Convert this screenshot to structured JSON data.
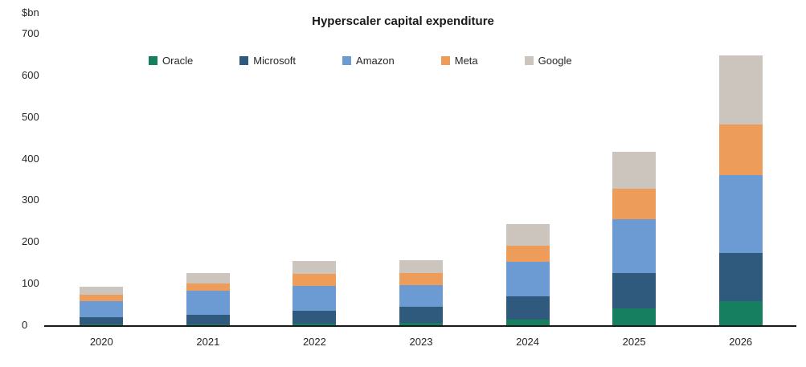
{
  "chart_data": {
    "type": "bar",
    "stacked": true,
    "title": "Hyperscaler capital expenditure",
    "ylabel": "$bn",
    "ylim": [
      0,
      700
    ],
    "yticks": [
      0,
      100,
      200,
      300,
      400,
      500,
      600,
      700
    ],
    "grid": false,
    "legend_position": "top",
    "categories": [
      "2020",
      "2021",
      "2022",
      "2023",
      "2024",
      "2025",
      "2026"
    ],
    "series": [
      {
        "name": "Oracle",
        "color": "#167f5f",
        "values": [
          2,
          2,
          4,
          5,
          14,
          40,
          57
        ]
      },
      {
        "name": "Microsoft",
        "color": "#2f5a7d",
        "values": [
          18,
          24,
          30,
          40,
          56,
          85,
          116
        ]
      },
      {
        "name": "Amazon",
        "color": "#6b9bd2",
        "values": [
          38,
          56,
          60,
          52,
          83,
          130,
          187
        ]
      },
      {
        "name": "Meta",
        "color": "#ee9c59",
        "values": [
          15,
          18,
          30,
          28,
          37,
          72,
          122
        ]
      },
      {
        "name": "Google",
        "color": "#ccc5be",
        "values": [
          19,
          25,
          31,
          32,
          53,
          90,
          166
        ]
      }
    ]
  }
}
